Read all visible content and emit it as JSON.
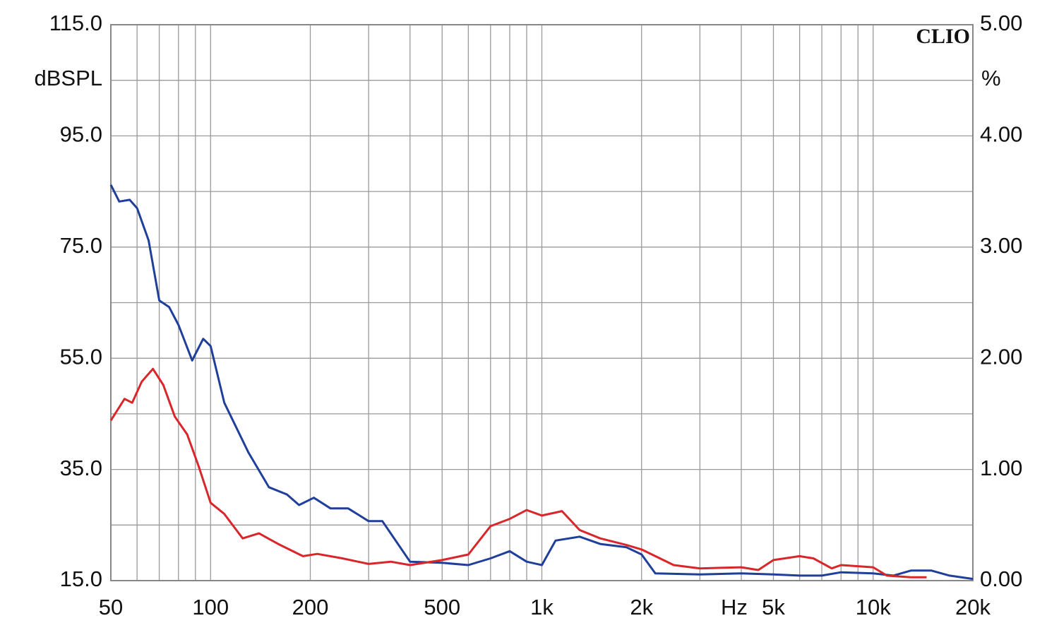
{
  "chart_data": {
    "type": "line",
    "annotation": "CLIO",
    "ylabel": "dBSPL",
    "y2label": "%",
    "xlabel": "Hz",
    "xscale": "log",
    "grid": true,
    "xlim": [
      50,
      20000
    ],
    "xticks": [
      50,
      100,
      200,
      500,
      {
        "value": 1000,
        "label": "1k"
      },
      {
        "value": 2000,
        "label": "2k"
      },
      {
        "value": 5000,
        "label": "5k"
      },
      {
        "value": 10000,
        "label": "10k"
      },
      {
        "value": 20000,
        "label": "20k"
      }
    ],
    "xminor": [
      60,
      70,
      80,
      90,
      300,
      400,
      600,
      700,
      800,
      900,
      3000,
      4000,
      6000,
      7000,
      8000,
      9000
    ],
    "ylim": [
      15,
      115
    ],
    "yticks": [
      {
        "value": 15,
        "label": "15.0"
      },
      {
        "value": 35,
        "label": "35.0"
      },
      {
        "value": 55,
        "label": "55.0"
      },
      {
        "value": 75,
        "label": "75.0"
      },
      {
        "value": 95,
        "label": "95.0"
      },
      {
        "value": 115,
        "label": "115.0"
      }
    ],
    "yminor": [
      25,
      45,
      65,
      85,
      105
    ],
    "y2lim": [
      0,
      5
    ],
    "y2ticks": [
      {
        "value": 0,
        "label": "0.00"
      },
      {
        "value": 1,
        "label": "1.00"
      },
      {
        "value": 2,
        "label": "2.00"
      },
      {
        "value": 3,
        "label": "3.00"
      },
      {
        "value": 4,
        "label": "4.00"
      },
      {
        "value": 5,
        "label": "5.00"
      }
    ],
    "series": [
      {
        "color": "#1f3f9a",
        "x": [
          50,
          53,
          57,
          60,
          65,
          70,
          75,
          80,
          88,
          95,
          100,
          110,
          130,
          150,
          170,
          185,
          205,
          230,
          260,
          300,
          330,
          400,
          500,
          600,
          700,
          800,
          900,
          1000,
          1100,
          1300,
          1500,
          1800,
          2000,
          2200,
          3000,
          4000,
          5000,
          6000,
          7000,
          8000,
          10000,
          11500,
          13000,
          15000,
          17000,
          20000
        ],
        "values": [
          86.2,
          83.2,
          83.5,
          82,
          76.2,
          65.4,
          64.2,
          61,
          54.6,
          58.5,
          57.2,
          47,
          38.1,
          31.8,
          30.5,
          28.6,
          29.9,
          28,
          28,
          25.7,
          25.7,
          18.4,
          18.2,
          17.8,
          19,
          20.3,
          18.4,
          17.8,
          22.2,
          22.9,
          21.6,
          21,
          19.7,
          16.3,
          16.1,
          16.3,
          16.1,
          15.9,
          15.9,
          16.5,
          16.3,
          15.9,
          16.8,
          16.8,
          15.9,
          15.3
        ]
      },
      {
        "color": "#d9262b",
        "x": [
          50,
          55,
          58,
          62,
          67,
          72,
          78,
          85,
          92,
          100,
          110,
          125,
          140,
          160,
          190,
          210,
          250,
          300,
          350,
          400,
          500,
          600,
          700,
          800,
          900,
          1000,
          1150,
          1300,
          1500,
          1800,
          2000,
          2500,
          3000,
          4000,
          4500,
          5000,
          6000,
          6600,
          7500,
          8000,
          10000,
          11000,
          13000,
          14500
        ],
        "values": [
          43.8,
          47.7,
          47,
          50.8,
          53.1,
          50.2,
          44.5,
          41.3,
          35.6,
          29,
          27,
          22.6,
          23.5,
          21.6,
          19.4,
          19.8,
          19,
          18,
          18.4,
          17.8,
          18.7,
          19.7,
          24.8,
          26.1,
          27.7,
          26.7,
          27.5,
          24.1,
          22.6,
          21.4,
          20.6,
          17.8,
          17.2,
          17.4,
          16.9,
          18.7,
          19.4,
          19,
          17.2,
          17.8,
          17.4,
          15.9,
          15.6,
          15.6
        ]
      }
    ]
  }
}
